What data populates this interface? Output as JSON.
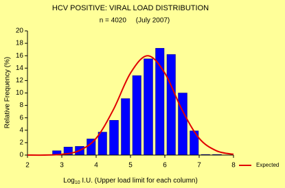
{
  "chart_data": {
    "type": "histogram",
    "title": "HCV POSITIVE: VIRAL LOAD DISTRIBUTION",
    "subtitle": "n = 4020     (July 2007)",
    "y_label": "Relative Frequency (%)",
    "x_label": {
      "text": "Log",
      "subscript": "10",
      "rest": " I.U. (Upper load limit for each column)"
    },
    "bins": [
      2.67,
      3,
      3.33,
      3.67,
      4,
      4.33,
      4.67,
      5,
      5.33,
      5.67,
      6,
      6.33,
      6.67,
      7,
      7.33,
      7.67
    ],
    "values": [
      0.7,
      1.3,
      1.4,
      2.6,
      3.7,
      5.6,
      9.1,
      12.8,
      15.5,
      17.2,
      16.2,
      10.0,
      3.9,
      0.1,
      0.1
    ],
    "color": "#0000ff",
    "expected": {
      "name": "Expected",
      "color": "#e00000",
      "x": [
        2,
        2.5,
        3,
        3.5,
        4,
        4.5,
        5,
        5.5,
        6,
        6.5,
        7,
        7.5,
        8
      ],
      "values": [
        0,
        0,
        0.12,
        0.7,
        2.7,
        7.3,
        13.2,
        16,
        13.2,
        7.3,
        2.7,
        0.7,
        0.12
      ]
    },
    "xlim": [
      2,
      8
    ],
    "xticks": [
      2,
      3,
      4,
      5,
      6,
      7,
      8
    ],
    "ylim": [
      0,
      20
    ],
    "yticks": [
      0,
      2,
      4,
      6,
      8,
      10,
      12,
      14,
      16,
      18,
      20
    ],
    "legend": "bottom-right"
  }
}
